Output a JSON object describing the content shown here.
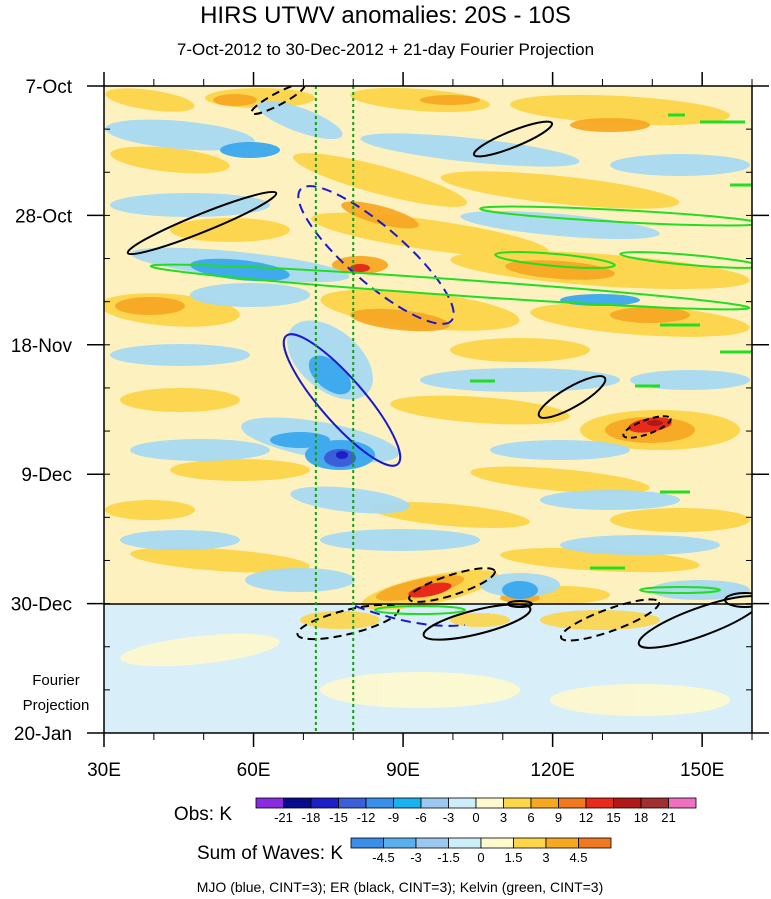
{
  "chart_data": {
    "type": "heatmap",
    "title": "HIRS UTWV anomalies: 20S - 10S",
    "subtitle": "7-Oct-2012 to 30-Dec-2012 + 21-day Fourier Projection",
    "x_axis": {
      "min_lon": 30,
      "max_lon": 160,
      "ticks": [
        30,
        60,
        90,
        120,
        150
      ],
      "tick_labels": [
        "30E",
        "60E",
        "90E",
        "120E",
        "150E"
      ]
    },
    "y_axis": {
      "start_day": 0,
      "end_day": 105,
      "ticks": [
        {
          "day": 0,
          "label": "7-Oct"
        },
        {
          "day": 21,
          "label": "28-Oct"
        },
        {
          "day": 42,
          "label": "18-Nov"
        },
        {
          "day": 63,
          "label": "9-Dec"
        },
        {
          "day": 84,
          "label": "30-Dec"
        },
        {
          "day": 105,
          "label": "20-Jan"
        }
      ]
    },
    "projection_label": [
      "Fourier",
      "Projection"
    ],
    "projection_start_day": 84,
    "reference_lon_lines": [
      72.5,
      80
    ],
    "obs_legend": {
      "label": "Obs: K",
      "ticks": [
        "-21",
        "-18",
        "-15",
        "-12",
        "-9",
        "-6",
        "-3",
        "0",
        "3",
        "6",
        "9",
        "12",
        "15",
        "18",
        "21"
      ],
      "colors": [
        "#8a2be2",
        "#0a0a8c",
        "#1f1fc8",
        "#3a5fd8",
        "#3a8ee8",
        "#1ab2ee",
        "#9cc8f0",
        "#cdeef8",
        "#fffacd",
        "#fcd54a",
        "#f7a823",
        "#f0781e",
        "#e82a1a",
        "#b01818",
        "#a03030",
        "#f070c0"
      ]
    },
    "waves_legend": {
      "label": "Sum of Waves: K",
      "ticks": [
        "-4.5",
        "-3",
        "-1.5",
        "0",
        "1.5",
        "3",
        "4.5"
      ],
      "colors": [
        "#3a8ee8",
        "#5ab0ee",
        "#9cc8f0",
        "#cdeef8",
        "#fffacd",
        "#fcd54a",
        "#f7a823",
        "#f0781e"
      ]
    },
    "footer": "MJO (blue, CINT=3); ER (black, CINT=3); Kelvin (green, CINT=3)",
    "series": [
      {
        "name": "MJO",
        "color": "#1a1acc"
      },
      {
        "name": "ER",
        "color": "#000000"
      },
      {
        "name": "Kelvin",
        "color": "#22dd22"
      }
    ]
  }
}
